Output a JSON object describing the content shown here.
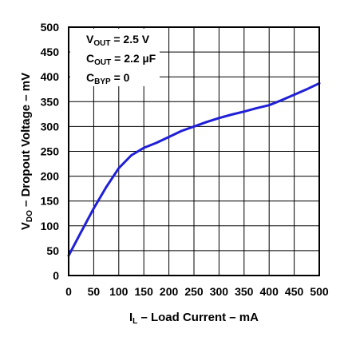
{
  "chart_data": {
    "type": "line",
    "title": "",
    "xlabel": {
      "main": "I",
      "sub": "L",
      "rest": " – Load Current – mA"
    },
    "ylabel": {
      "main": "V",
      "sub": "DO",
      "rest": " – Dropout Voltage – mV"
    },
    "xlim": [
      0,
      500
    ],
    "ylim": [
      0,
      500
    ],
    "xticks": [
      0,
      50,
      100,
      150,
      200,
      250,
      300,
      350,
      400,
      450,
      500
    ],
    "yticks": [
      0,
      50,
      100,
      150,
      200,
      250,
      300,
      350,
      400,
      450,
      500
    ],
    "grid": true,
    "line_color": "#1f1fd8",
    "series": [
      {
        "x": [
          0,
          25,
          50,
          75,
          100,
          125,
          150,
          175,
          200,
          225,
          250,
          275,
          300,
          325,
          350,
          375,
          400,
          425,
          450,
          475,
          500
        ],
        "y": [
          40,
          88,
          135,
          178,
          216,
          242,
          257,
          267,
          279,
          291,
          300,
          309,
          317,
          324,
          330,
          337,
          343,
          353,
          364,
          375,
          387
        ]
      }
    ],
    "annotations": [
      {
        "main": "V",
        "sub": "OUT",
        "rest": " = 2.5 V"
      },
      {
        "main": "C",
        "sub": "OUT",
        "rest": " = 2.2 µF"
      },
      {
        "main": "C",
        "sub": "BYP",
        "rest": " = 0"
      }
    ]
  }
}
